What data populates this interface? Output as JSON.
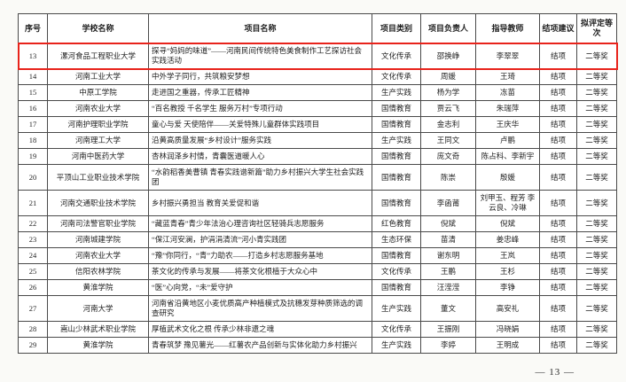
{
  "table": {
    "headers": [
      "序号",
      "学校名称",
      "项目名称",
      "项目类别",
      "项目负责人",
      "指导教师",
      "结项建议",
      "拟评定等次"
    ],
    "rows": [
      {
        "no": "13",
        "school": "漯河食品工程职业大学",
        "project": "探寻“妈妈的味道”——河南民间传统特色美食制作工艺探访社会实践活动",
        "category": "文化传承",
        "leader": "邵换峥",
        "advisor": "李翠翠",
        "conclusion": "结项",
        "grade": "二等奖",
        "highlighted": true
      },
      {
        "no": "14",
        "school": "河南工业大学",
        "project": "中外学子同行，共筑粮安梦想",
        "category": "文化传承",
        "leader": "周媛",
        "advisor": "王琦",
        "conclusion": "结项",
        "grade": "二等奖",
        "highlighted": false
      },
      {
        "no": "15",
        "school": "中原工学院",
        "project": "走进国之重器，传承工匠精神",
        "category": "生产实践",
        "leader": "杨为学",
        "advisor": "冻苗",
        "conclusion": "结项",
        "grade": "二等奖",
        "highlighted": false
      },
      {
        "no": "16",
        "school": "河南农业大学",
        "project": "“百名教授 千名学生 服务万村”专项行动",
        "category": "国情教育",
        "leader": "贾云飞",
        "advisor": "朱瑞萍",
        "conclusion": "结项",
        "grade": "二等奖",
        "highlighted": false
      },
      {
        "no": "17",
        "school": "河南护理职业学院",
        "project": "童心与爱 天使陪伴——关爱特殊儿童群体实践项目",
        "category": "国情教育",
        "leader": "金志利",
        "advisor": "王庆华",
        "conclusion": "结项",
        "grade": "二等奖",
        "highlighted": false
      },
      {
        "no": "18",
        "school": "河南理工大学",
        "project": "沿黄高质量发展“乡村设计”服务实践",
        "category": "生产实践",
        "leader": "王同文",
        "advisor": "卢鹏",
        "conclusion": "结项",
        "grade": "二等奖",
        "highlighted": false
      },
      {
        "no": "19",
        "school": "河南中医药大学",
        "project": "杏林润泽乡村情，青囊医道暖人心",
        "category": "国情教育",
        "leader": "庞文奇",
        "advisor": "陈占科、李新宇",
        "conclusion": "结项",
        "grade": "二等奖",
        "highlighted": false
      },
      {
        "no": "20",
        "school": "平顶山工业职业技术学院",
        "project": "“水韵稻香美曹镇 青春实践谱新篇”助力乡村振兴大学生社会实践团",
        "category": "国情教育",
        "leader": "陈崇",
        "advisor": "殷媛",
        "conclusion": "结项",
        "grade": "二等奖",
        "highlighted": false
      },
      {
        "no": "21",
        "school": "河南交通职业技术学院",
        "project": "乡村振兴勇担当 教育关爱促和谐",
        "category": "国情教育",
        "leader": "李函莆",
        "advisor": "刘甲玉、程芳 李云良、冷琳",
        "conclusion": "结项",
        "grade": "二等奖",
        "highlighted": false
      },
      {
        "no": "22",
        "school": "河南司法警官职业学院",
        "project": "“藏蓝青春”青少年法治心理咨询社区轻骑兵志愿服务",
        "category": "红色教育",
        "leader": "倪斌",
        "advisor": "倪斌",
        "conclusion": "结项",
        "grade": "二等奖",
        "highlighted": false
      },
      {
        "no": "23",
        "school": "河南城建学院",
        "project": "“保江河安澜，护涓涓清流”河小青实践团",
        "category": "生态环保",
        "leader": "苗清",
        "advisor": "姜忠峰",
        "conclusion": "结项",
        "grade": "二等奖",
        "highlighted": false
      },
      {
        "no": "24",
        "school": "河南农业大学",
        "project": "“豫”你同行，“青”力助农——打造乡村志愿服务基地",
        "category": "国情教育",
        "leader": "谢东明",
        "advisor": "王岚",
        "conclusion": "结项",
        "grade": "二等奖",
        "highlighted": false
      },
      {
        "no": "25",
        "school": "信阳农林学院",
        "project": "茶文化的传承与发展——将茶文化根植于大众心中",
        "category": "文化传承",
        "leader": "王鹏",
        "advisor": "王杉",
        "conclusion": "结项",
        "grade": "二等奖",
        "highlighted": false
      },
      {
        "no": "26",
        "school": "黄淮学院",
        "project": "“医”心向党，“未”爱守护",
        "category": "国情教育",
        "leader": "汪滢滢",
        "advisor": "李铮",
        "conclusion": "结项",
        "grade": "二等奖",
        "highlighted": false
      },
      {
        "no": "27",
        "school": "河南大学",
        "project": "河南省沿黄地区小麦优质高产种植模式及抗穗发芽种质筛选的调查研究",
        "category": "生产实践",
        "leader": "董文",
        "advisor": "高安礼",
        "conclusion": "结项",
        "grade": "二等奖",
        "highlighted": false
      },
      {
        "no": "28",
        "school": "嵩山少林武术职业学院",
        "project": "厚植武术文化之根 传承少林非遗之魂",
        "category": "文化传承",
        "leader": "王振刚",
        "advisor": "冯晓娟",
        "conclusion": "结项",
        "grade": "二等奖",
        "highlighted": false
      },
      {
        "no": "29",
        "school": "黄淮学院",
        "project": "青春筑梦 豫见薯光——红薯农产品创新与实体化助力乡村振兴",
        "category": "生产实践",
        "leader": "李婷",
        "advisor": "王明成",
        "conclusion": "结项",
        "grade": "二等奖",
        "highlighted": false
      }
    ]
  },
  "footer": {
    "page_number": "— 13 —"
  },
  "colors": {
    "highlight_border": "#e8231b",
    "table_border": "#4a4a4a",
    "page_background": "#fafaf7"
  }
}
